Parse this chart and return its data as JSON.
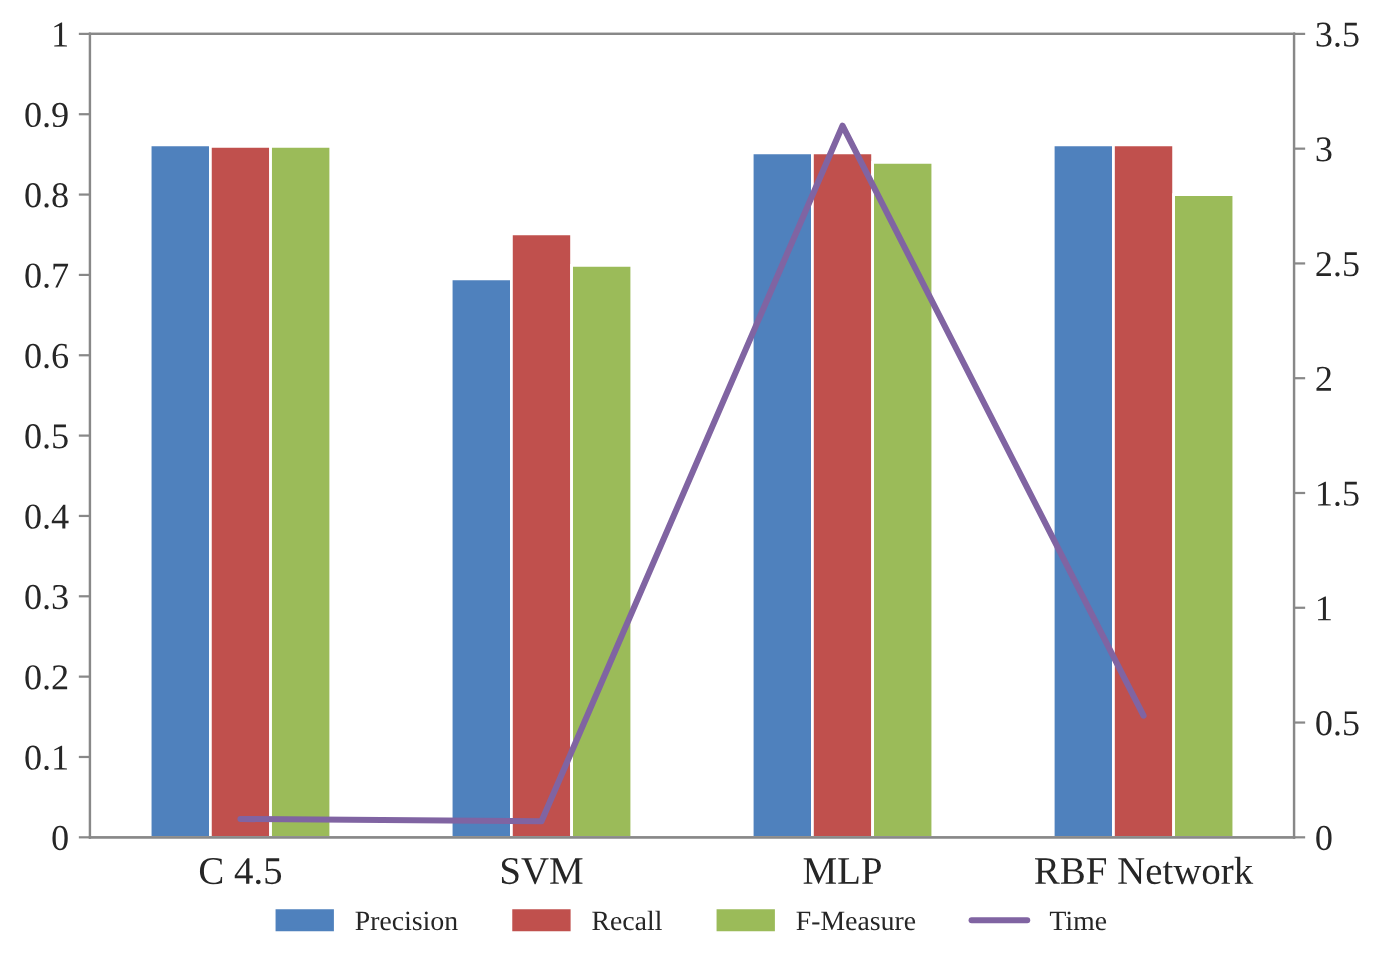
{
  "chart_data": {
    "type": "bar",
    "categories": [
      "C 4.5",
      "SVM",
      "MLP",
      "RBF Network"
    ],
    "series": [
      {
        "name": "Precision",
        "color": "#4f81bd",
        "values": [
          0.862,
          0.695,
          0.852,
          0.862
        ]
      },
      {
        "name": "Recall",
        "color": "#c0504d",
        "values": [
          0.86,
          0.751,
          0.852,
          0.862
        ]
      },
      {
        "name": "F-Measure",
        "color": "#9bbb59",
        "values": [
          0.86,
          0.712,
          0.84,
          0.8
        ]
      },
      {
        "name": "Time",
        "type": "line",
        "axis": "y2",
        "color": "#8064a2",
        "values": [
          0.08,
          0.07,
          3.1,
          0.53
        ]
      }
    ],
    "ylim": [
      0,
      1
    ],
    "yticks": [
      0,
      0.1,
      0.2,
      0.3,
      0.4,
      0.5,
      0.6,
      0.7,
      0.8,
      0.9,
      1
    ],
    "y2lim": [
      0,
      3.5
    ],
    "y2ticks": [
      0,
      0.5,
      1,
      1.5,
      2,
      2.5,
      3,
      3.5
    ],
    "legend": "bottom",
    "grid": false,
    "marker": "none",
    "line_style": "solid"
  }
}
